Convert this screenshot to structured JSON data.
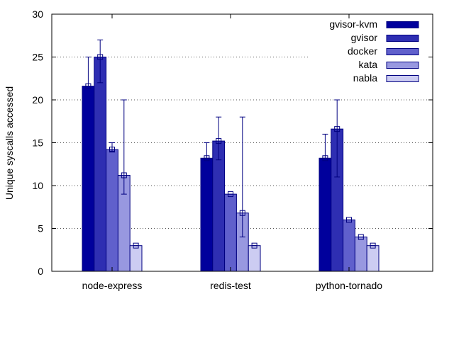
{
  "chart_data": {
    "type": "bar",
    "title": "",
    "xlabel": "",
    "ylabel": "Unique syscalls accessed",
    "ylim": [
      0,
      30
    ],
    "yticks": [
      0,
      5,
      10,
      15,
      20,
      25,
      30
    ],
    "grid": "horizontal dotted",
    "legend_position": "top-right",
    "categories": [
      "node-express",
      "redis-test",
      "python-tornado"
    ],
    "series": [
      {
        "name": "gvisor-kvm",
        "color": "#00009c",
        "values": [
          21.6,
          13.2,
          13.2
        ],
        "error": [
          [
            21.6,
            25
          ],
          [
            13.2,
            15
          ],
          [
            13.2,
            16
          ]
        ]
      },
      {
        "name": "gvisor",
        "color": "#2e2eb2",
        "values": [
          25,
          15.2,
          16.6
        ],
        "error": [
          [
            22,
            27
          ],
          [
            13,
            18
          ],
          [
            11,
            20
          ]
        ]
      },
      {
        "name": "docker",
        "color": "#6060cc",
        "values": [
          14.2,
          9,
          6
        ],
        "error": [
          [
            14,
            15
          ],
          [
            9,
            9
          ],
          [
            6,
            6
          ]
        ]
      },
      {
        "name": "kata",
        "color": "#9898e0",
        "values": [
          11.2,
          6.8,
          4
        ],
        "error": [
          [
            9,
            20
          ],
          [
            4,
            18
          ],
          [
            4,
            4
          ]
        ]
      },
      {
        "name": "nabla",
        "color": "#ccccf2",
        "values": [
          3,
          3,
          3
        ],
        "error": [
          [
            3,
            3
          ],
          [
            3,
            3
          ],
          [
            3,
            3
          ]
        ]
      }
    ]
  }
}
